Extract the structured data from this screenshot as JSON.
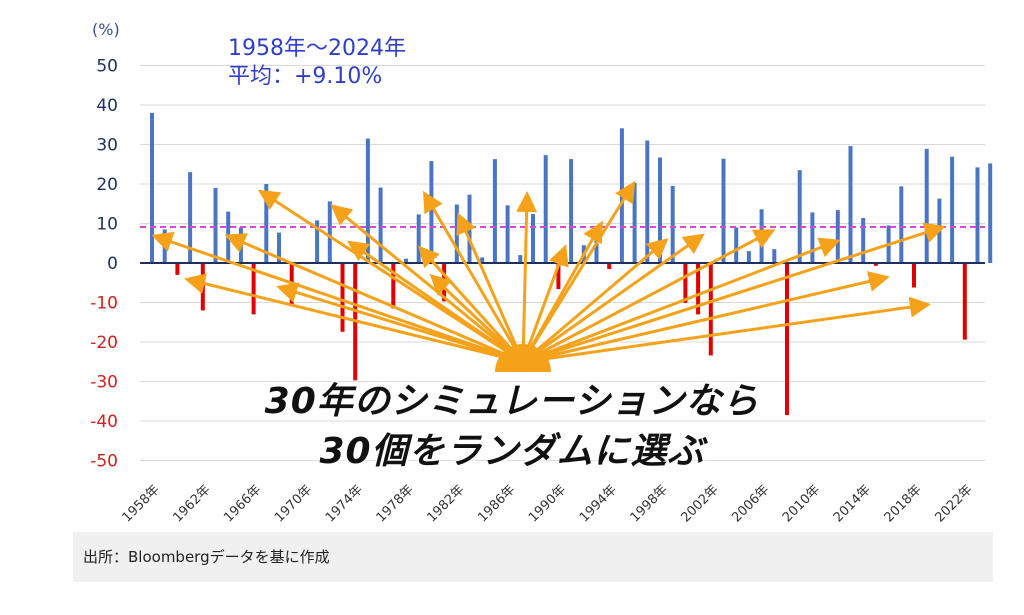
{
  "chart_data": {
    "type": "bar",
    "unit_label": "(%)",
    "period_label": "1958年～2024年",
    "average_label": "平均：+9.10%",
    "average_value": 9.1,
    "ylim": [
      -50,
      50
    ],
    "y_ticks": [
      50,
      40,
      30,
      20,
      10,
      0,
      -10,
      -20,
      -30,
      -40,
      -50
    ],
    "y_tick_labels": [
      "50",
      "40",
      "30",
      "20",
      "10",
      "0",
      "-10",
      "-20",
      "-30",
      "-40",
      "-50"
    ],
    "x_tick_labels": [
      "1958年",
      "1962年",
      "1966年",
      "1970年",
      "1974年",
      "1978年",
      "1982年",
      "1986年",
      "1990年",
      "1994年",
      "1998年",
      "2002年",
      "2006年",
      "2010年",
      "2014年",
      "2018年",
      "2022年"
    ],
    "years": [
      1958,
      1959,
      1960,
      1961,
      1962,
      1963,
      1964,
      1965,
      1966,
      1967,
      1968,
      1969,
      1970,
      1971,
      1972,
      1973,
      1974,
      1975,
      1976,
      1977,
      1978,
      1979,
      1980,
      1981,
      1982,
      1983,
      1984,
      1985,
      1986,
      1987,
      1988,
      1989,
      1990,
      1991,
      1992,
      1993,
      1994,
      1995,
      1996,
      1997,
      1998,
      1999,
      2000,
      2001,
      2002,
      2003,
      2004,
      2005,
      2006,
      2007,
      2008,
      2009,
      2010,
      2011,
      2012,
      2013,
      2014,
      2015,
      2016,
      2017,
      2018,
      2019,
      2020,
      2021,
      2022,
      2023,
      2024
    ],
    "values": [
      38,
      8.5,
      -3,
      23,
      -12,
      19,
      13,
      9,
      -13,
      20,
      7.7,
      -11,
      0.1,
      10.8,
      15.6,
      -17.4,
      -29.7,
      31.5,
      19.1,
      -11.5,
      1.1,
      12.3,
      25.8,
      -9.7,
      14.8,
      17.3,
      1.4,
      26.3,
      14.6,
      2,
      12.4,
      27.3,
      -6.6,
      26.3,
      4.5,
      7.1,
      -1.5,
      34.1,
      20.3,
      31,
      26.7,
      19.5,
      -10.1,
      -13,
      -23.4,
      26.4,
      9,
      3,
      13.6,
      3.5,
      -38.5,
      23.5,
      12.8,
      0,
      13.4,
      29.6,
      11.4,
      -0.7,
      9.5,
      19.4,
      -6.2,
      28.9,
      16.3,
      26.9,
      -19.4,
      24.2,
      25.2
    ],
    "colors": {
      "positive": "#4a74c4",
      "negative": "#e00000",
      "average_line": "#dd44dd",
      "arrow": "#f5a21a",
      "axis": "#1f2f5f"
    },
    "callout_line1": "30年のシミュレーションなら",
    "callout_line2": "30個をランダムに選ぶ"
  },
  "source": "出所：Bloombergデータを基に作成"
}
